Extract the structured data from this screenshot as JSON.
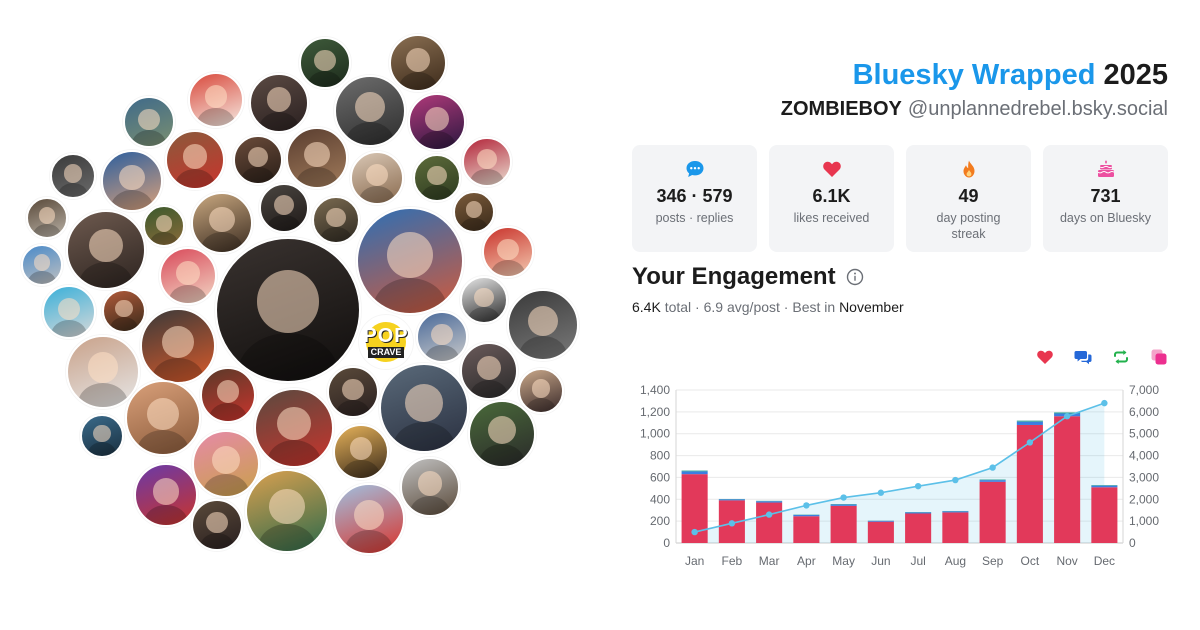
{
  "header": {
    "title_brand": "Bluesky Wrapped",
    "title_year": "2025",
    "display_name": "ZOMBIEBOY",
    "handle": "@unplannedrebel.bsky.social"
  },
  "stats": [
    {
      "icon": "chat-bubble-icon",
      "value": "346 · 579",
      "label": "posts · replies",
      "color": "#1a97ea"
    },
    {
      "icon": "heart-icon",
      "value": "6.1K",
      "label": "likes received",
      "color": "#e8364f"
    },
    {
      "icon": "flame-icon",
      "value": "49",
      "label": "day posting streak",
      "color": "#f27b1e"
    },
    {
      "icon": "cake-icon",
      "value": "731",
      "label": "days on Bluesky",
      "color": "#ec4fa0"
    }
  ],
  "engagement": {
    "title": "Your Engagement",
    "total": "6.4K",
    "total_word": "total",
    "avg": "6.9 avg/post",
    "best_prefix": "Best in",
    "best_month": "November"
  },
  "legend": [
    {
      "icon": "heart-icon",
      "color": "#e8364f"
    },
    {
      "icon": "reply-bubbles-icon",
      "color": "#2568d8"
    },
    {
      "icon": "repost-icon",
      "color": "#22b14c"
    },
    {
      "icon": "quote-icon",
      "color": "#ec2f8f"
    }
  ],
  "avatar_cloud": {
    "badge_word_1": "POP",
    "badge_word_2": "CRAVE"
  },
  "chart_data": {
    "type": "bar",
    "categories": [
      "Jan",
      "Feb",
      "Mar",
      "Apr",
      "May",
      "Jun",
      "Jul",
      "Aug",
      "Sep",
      "Oct",
      "Nov",
      "Dec"
    ],
    "series": [
      {
        "values": [
          630,
          390,
          370,
          245,
          340,
          195,
          270,
          280,
          560,
          1080,
          1160,
          510
        ],
        "color": "#e2395a",
        "axis": "left",
        "stacked": true
      },
      {
        "values": [
          25,
          10,
          12,
          12,
          12,
          8,
          10,
          10,
          15,
          30,
          25,
          15
        ],
        "color": "#3c7fe0",
        "axis": "left",
        "stacked": true
      },
      {
        "values": [
          8,
          3,
          4,
          3,
          4,
          2,
          3,
          3,
          6,
          10,
          10,
          5
        ],
        "color": "#3aa89a",
        "axis": "left",
        "stacked": true
      },
      {
        "values": [
          500,
          900,
          1300,
          1720,
          2080,
          2300,
          2600,
          2880,
          3450,
          4600,
          5800,
          6400
        ],
        "color": "#5cc0e8",
        "axis": "right",
        "kind": "area-line"
      }
    ],
    "left_ticks": [
      "0",
      "200",
      "400",
      "600",
      "800",
      "1,000",
      "1,200",
      "1,400"
    ],
    "right_ticks": [
      "0",
      "1,000",
      "2,000",
      "3,000",
      "4,000",
      "5,000",
      "6,000",
      "7,000"
    ],
    "ylim": [
      0,
      1400
    ],
    "y2lim": [
      0,
      7000
    ],
    "grid": true
  }
}
